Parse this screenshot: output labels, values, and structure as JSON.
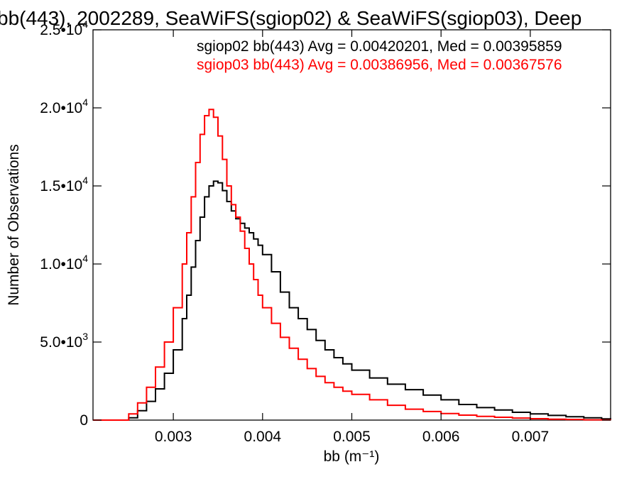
{
  "chart_data": {
    "type": "line",
    "step": true,
    "title": "bb(443), 2002289, SeaWiFS(sgiop02) & SeaWiFS(sgiop03), Deep",
    "xlabel": "bb (m⁻¹)",
    "ylabel": "Number of Observations",
    "xlim": [
      0.0021,
      0.0079
    ],
    "ylim": [
      0,
      25000
    ],
    "x_ticks": [
      0.003,
      0.004,
      0.005,
      0.006,
      0.007
    ],
    "x_tick_labels": [
      "0.003",
      "0.004",
      "0.005",
      "0.006",
      "0.007"
    ],
    "y_ticks": [
      0,
      5000,
      10000,
      15000,
      20000,
      25000
    ],
    "y_tick_labels": [
      {
        "mantissa": "0",
        "exp": ""
      },
      {
        "mantissa": "5.0•10",
        "exp": "3"
      },
      {
        "mantissa": "1.0•10",
        "exp": "4"
      },
      {
        "mantissa": "1.5•10",
        "exp": "4"
      },
      {
        "mantissa": "2.0•10",
        "exp": "4"
      },
      {
        "mantissa": "2.5•10",
        "exp": "4"
      }
    ],
    "grid": false,
    "legend": "top-right",
    "annotations": [
      {
        "text": "sgiop02 bb(443) Avg = 0.00420201, Med = 0.00395859",
        "color": "#000000"
      },
      {
        "text": "sgiop03 bb(443) Avg = 0.00386956, Med = 0.00367576",
        "color": "#ff0000"
      }
    ],
    "series": [
      {
        "color": "#000000",
        "x": [
          0.0021,
          0.0023,
          0.0025,
          0.0026,
          0.0027,
          0.0028,
          0.0029,
          0.003,
          0.0031,
          0.00315,
          0.0032,
          0.00325,
          0.0033,
          0.00335,
          0.0034,
          0.00345,
          0.0035,
          0.00355,
          0.0036,
          0.00365,
          0.0037,
          0.00375,
          0.0038,
          0.00385,
          0.0039,
          0.00395,
          0.004,
          0.0041,
          0.0042,
          0.0043,
          0.0044,
          0.0045,
          0.0046,
          0.0047,
          0.0048,
          0.0049,
          0.005,
          0.0052,
          0.0054,
          0.0056,
          0.0058,
          0.006,
          0.0062,
          0.0064,
          0.0066,
          0.0068,
          0.007,
          0.0072,
          0.0074,
          0.0076,
          0.0078,
          0.0079
        ],
        "y": [
          0,
          0,
          150,
          600,
          1200,
          2000,
          3000,
          4500,
          6500,
          8000,
          9800,
          11500,
          13000,
          14300,
          15000,
          15300,
          15200,
          14700,
          14000,
          13400,
          12900,
          12600,
          12300,
          12000,
          11600,
          11200,
          10600,
          9500,
          8200,
          7200,
          6500,
          5800,
          5100,
          4500,
          4000,
          3600,
          3200,
          2700,
          2300,
          1950,
          1600,
          1300,
          1000,
          800,
          650,
          500,
          400,
          300,
          220,
          150,
          80,
          40
        ]
      },
      {
        "color": "#ff0000",
        "x": [
          0.0021,
          0.0023,
          0.0025,
          0.0026,
          0.0027,
          0.0028,
          0.0029,
          0.003,
          0.0031,
          0.00315,
          0.0032,
          0.00325,
          0.0033,
          0.00335,
          0.0034,
          0.00345,
          0.0035,
          0.00355,
          0.0036,
          0.00365,
          0.0037,
          0.00375,
          0.0038,
          0.00385,
          0.0039,
          0.00395,
          0.004,
          0.0041,
          0.0042,
          0.0043,
          0.0044,
          0.0045,
          0.0046,
          0.0047,
          0.0048,
          0.0049,
          0.005,
          0.0052,
          0.0054,
          0.0056,
          0.0058,
          0.006,
          0.0062,
          0.0064,
          0.0066,
          0.0068,
          0.007,
          0.0072,
          0.0074,
          0.0076,
          0.0078,
          0.0079
        ],
        "y": [
          0,
          0,
          400,
          1100,
          2100,
          3400,
          5000,
          7200,
          10000,
          12000,
          14300,
          16500,
          18300,
          19500,
          19900,
          19400,
          18200,
          16700,
          15000,
          13800,
          13000,
          12100,
          11000,
          10000,
          9000,
          8000,
          7200,
          6200,
          5300,
          4600,
          3900,
          3300,
          2800,
          2400,
          2100,
          1850,
          1650,
          1300,
          950,
          700,
          550,
          420,
          320,
          240,
          180,
          130,
          90,
          60,
          40,
          20,
          10,
          5
        ]
      }
    ]
  }
}
